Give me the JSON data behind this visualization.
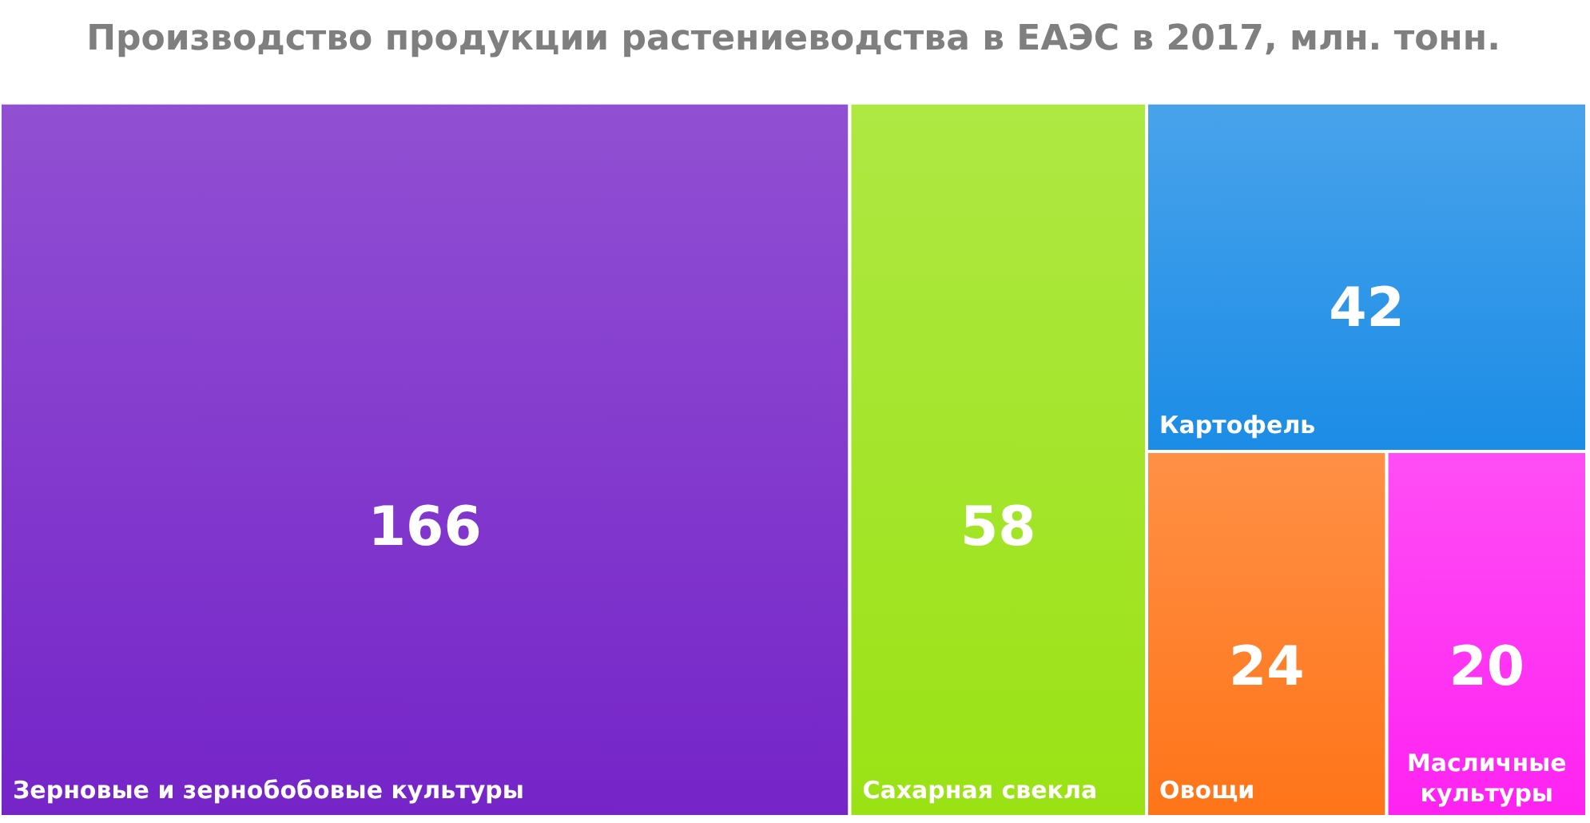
{
  "chart_data": {
    "type": "other",
    "title": "Производство продукции растениеводства в ЕАЭС в 2017, млн. тонн.",
    "categories": [
      "Зерновые и зернобобовые культуры",
      "Сахарная свекла",
      "Картофель",
      "Овощи",
      "Масличные культуры"
    ],
    "values": [
      166,
      58,
      42,
      24,
      20
    ],
    "colors": [
      "#7524c8",
      "#9ae214",
      "#1b8ce6",
      "#ff7418",
      "#ff22f2"
    ],
    "data_labels": true
  }
}
